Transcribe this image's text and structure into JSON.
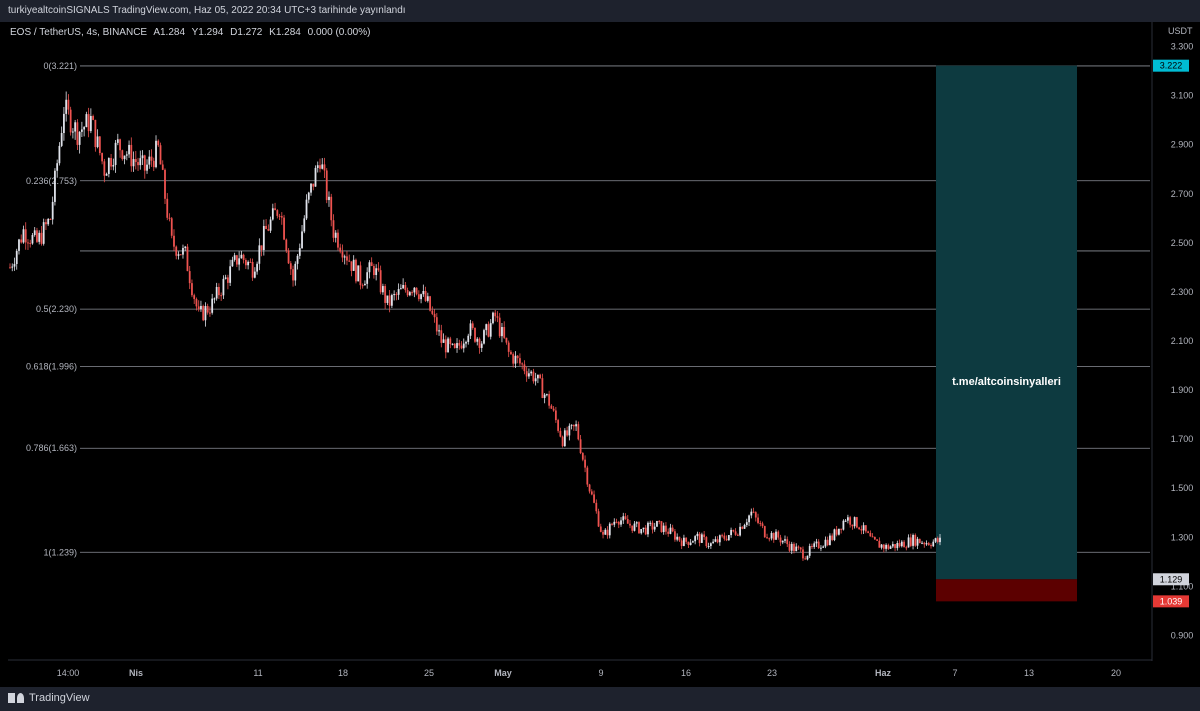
{
  "header": {
    "publisher": "turkiyealtcoinSIGNALS TradingView.com, Haz 05, 2022 20:34 UTC+3 tarihinde yayınlandı"
  },
  "symbol_bar": {
    "pair": "EOS / TetherUS, 4s, BINANCE",
    "open": "A1.284",
    "high": "Y1.294",
    "low": "D1.272",
    "close": "K1.284",
    "change": "0.000 (0.00%)"
  },
  "footer": {
    "brand": "TradingView"
  },
  "colors": {
    "up": "#e0e3eb",
    "down": "#ef5350",
    "target_zone": "#0d3a40",
    "stop_zone": "#5c0000",
    "target_label": "#00bcd4",
    "stop_label": "#e53935",
    "fib_line": "#8c8f99"
  },
  "chart_data": {
    "type": "candlestick",
    "unit": "USDT",
    "ylim": [
      0.8,
      3.4
    ],
    "y_ticks": [
      "3.300",
      "3.100",
      "2.900",
      "2.700",
      "2.500",
      "2.300",
      "2.100",
      "1.900",
      "1.700",
      "1.500",
      "1.300",
      "1.100",
      "0.900"
    ],
    "x_ticks": [
      "14:00",
      "Nis",
      "11",
      "18",
      "25",
      "May",
      "9",
      "16",
      "23",
      "Haz",
      "7",
      "13",
      "20"
    ],
    "fib_levels": [
      {
        "label": "0(3.221)",
        "value": 3.221
      },
      {
        "label": "0.236(2.753)",
        "value": 2.753
      },
      {
        "label": "",
        "value": 2.467
      },
      {
        "label": "0.5(2.230)",
        "value": 2.23
      },
      {
        "label": "0.618(1.996)",
        "value": 1.996
      },
      {
        "label": "0.786(1.663)",
        "value": 1.663
      },
      {
        "label": "1(1.239)",
        "value": 1.239
      }
    ],
    "price_path": [
      [
        "Mar 28",
        2.4
      ],
      [
        "Mar 29",
        2.55
      ],
      [
        "Mar 30",
        2.5
      ],
      [
        "Mar 31",
        2.6
      ],
      [
        "Apr 1",
        3.05
      ],
      [
        "Apr 2",
        2.95
      ],
      [
        "Apr 3",
        3.0
      ],
      [
        "Apr 4",
        2.8
      ],
      [
        "Apr 5",
        2.9
      ],
      [
        "Apr 6",
        2.85
      ],
      [
        "Apr 7",
        2.8
      ],
      [
        "Apr 8",
        2.88
      ],
      [
        "Apr 9",
        2.5
      ],
      [
        "Apr 10",
        2.45
      ],
      [
        "Apr 11",
        2.2
      ],
      [
        "Apr 12",
        2.25
      ],
      [
        "Apr 13",
        2.35
      ],
      [
        "Apr 14",
        2.45
      ],
      [
        "Apr 15",
        2.4
      ],
      [
        "Apr 16",
        2.55
      ],
      [
        "Apr 17",
        2.65
      ],
      [
        "Apr 18",
        2.35
      ],
      [
        "Apr 19",
        2.65
      ],
      [
        "Apr 20",
        2.85
      ],
      [
        "Apr 21",
        2.55
      ],
      [
        "Apr 22",
        2.45
      ],
      [
        "Apr 23",
        2.35
      ],
      [
        "Apr 24",
        2.4
      ],
      [
        "Apr 25",
        2.25
      ],
      [
        "Apr 26",
        2.3
      ],
      [
        "Apr 27",
        2.33
      ],
      [
        "Apr 28",
        2.25
      ],
      [
        "Apr 29",
        2.1
      ],
      [
        "Apr 30",
        2.05
      ],
      [
        "May 1",
        2.15
      ],
      [
        "May 2",
        2.1
      ],
      [
        "May 3",
        2.2
      ],
      [
        "May 4",
        2.05
      ],
      [
        "May 5",
        2.0
      ],
      [
        "May 6",
        1.95
      ],
      [
        "May 7",
        1.85
      ],
      [
        "May 8",
        1.7
      ],
      [
        "May 9",
        1.75
      ],
      [
        "May 10",
        1.5
      ],
      [
        "May 11",
        1.3
      ],
      [
        "May 12",
        1.38
      ],
      [
        "May 13",
        1.35
      ],
      [
        "May 14",
        1.33
      ],
      [
        "May 15",
        1.35
      ],
      [
        "May 16",
        1.32
      ],
      [
        "May 17",
        1.28
      ],
      [
        "May 18",
        1.3
      ],
      [
        "May 19",
        1.27
      ],
      [
        "May 20",
        1.3
      ],
      [
        "May 21",
        1.33
      ],
      [
        "May 22",
        1.4
      ],
      [
        "May 23",
        1.32
      ],
      [
        "May 24",
        1.3
      ],
      [
        "May 25",
        1.26
      ],
      [
        "May 26",
        1.23
      ],
      [
        "May 27",
        1.27
      ],
      [
        "May 28",
        1.3
      ],
      [
        "May 29",
        1.38
      ],
      [
        "May 30",
        1.35
      ],
      [
        "May 31",
        1.28
      ],
      [
        "Jun 1",
        1.26
      ],
      [
        "Jun 2",
        1.27
      ],
      [
        "Jun 3",
        1.29
      ],
      [
        "Jun 4",
        1.28
      ],
      [
        "Jun 5",
        1.284
      ]
    ],
    "position": {
      "target": 3.222,
      "entry": 1.129,
      "stop": 1.039,
      "target_label": "3.222",
      "entry_label": "1.129",
      "stop_label": "1.039",
      "annotation": "t.me/altcoinsinyalleri"
    }
  }
}
